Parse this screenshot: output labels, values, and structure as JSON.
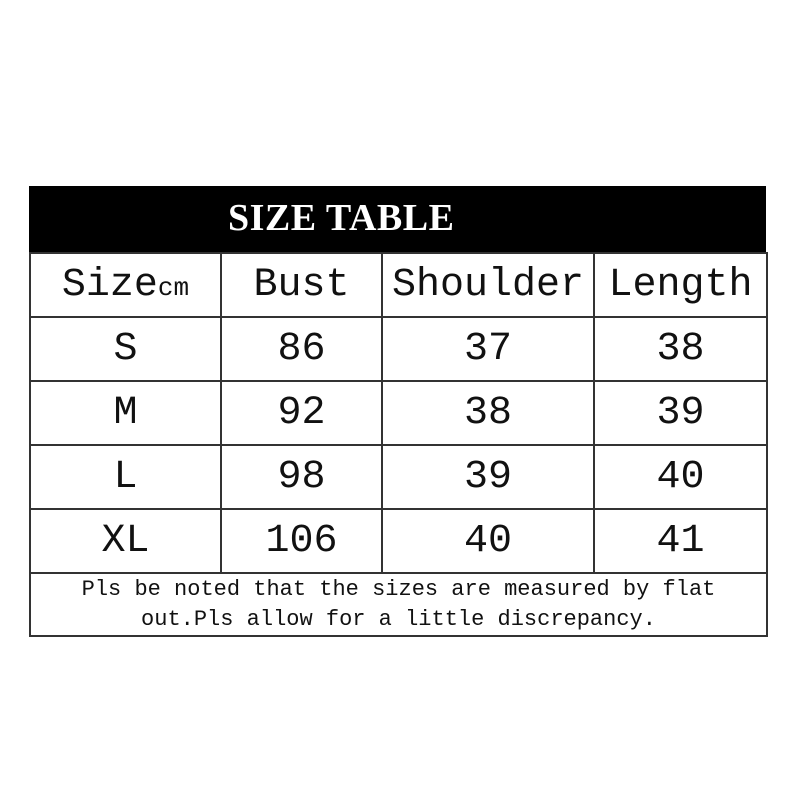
{
  "title": "SIZE TABLE",
  "header": {
    "size": "Size",
    "unit": "cm",
    "columns": [
      "Bust",
      "Shoulder",
      "Length"
    ]
  },
  "rows": [
    {
      "size": "S",
      "bust": "86",
      "shoulder": "37",
      "length": "38"
    },
    {
      "size": "M",
      "bust": "92",
      "shoulder": "38",
      "length": "39"
    },
    {
      "size": "L",
      "bust": "98",
      "shoulder": "39",
      "length": "40"
    },
    {
      "size": "XL",
      "bust": "106",
      "shoulder": "40",
      "length": "41"
    }
  ],
  "note_line1": "Pls be noted that the sizes are measured by flat",
  "note_line2": "out.Pls allow for a little discrepancy."
}
